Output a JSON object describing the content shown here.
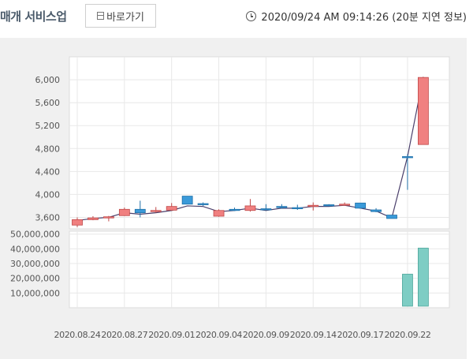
{
  "header": {
    "title": "매개 서비스업",
    "shortcut_label": "바로가기",
    "shortcut_icon": "window-icon",
    "clock_icon": "clock-icon",
    "timestamp": "2020/09/24 AM 09:14:26 (20분 지연 정보)"
  },
  "chart_data": [
    {
      "type": "candlestick",
      "title": "",
      "xlabel": "",
      "ylabel": "",
      "ylim": [
        3400,
        6400
      ],
      "yticks": [
        3600,
        4000,
        4400,
        4800,
        5200,
        5600,
        6000
      ],
      "ytick_labels": [
        "3,600",
        "4,000",
        "4,400",
        "4,800",
        "5,200",
        "5,600",
        "6,000"
      ],
      "x_tick_labels": [
        "2020.08.24",
        "2020.08.27",
        "2020.09.01",
        "2020.09.04",
        "2020.09.09",
        "2020.09.14",
        "2020.09.17",
        "2020.09.22"
      ],
      "x_tick_index": [
        0,
        3,
        6,
        9,
        12,
        15,
        18,
        21
      ],
      "up_color": "#f08080",
      "down_color": "#3a9ad9",
      "ma_color": "#4a3f6b",
      "candles": [
        {
          "o": 3465,
          "h": 3600,
          "l": 3430,
          "c": 3560
        },
        {
          "o": 3560,
          "h": 3620,
          "l": 3550,
          "c": 3590
        },
        {
          "o": 3590,
          "h": 3625,
          "l": 3530,
          "c": 3610
        },
        {
          "o": 3630,
          "h": 3770,
          "l": 3625,
          "c": 3740
        },
        {
          "o": 3740,
          "h": 3890,
          "l": 3600,
          "c": 3680
        },
        {
          "o": 3700,
          "h": 3780,
          "l": 3680,
          "c": 3720
        },
        {
          "o": 3725,
          "h": 3850,
          "l": 3715,
          "c": 3790
        },
        {
          "o": 3970,
          "h": 3970,
          "l": 3830,
          "c": 3830
        },
        {
          "o": 3840,
          "h": 3860,
          "l": 3800,
          "c": 3820
        },
        {
          "o": 3620,
          "h": 3740,
          "l": 3610,
          "c": 3720
        },
        {
          "o": 3740,
          "h": 3770,
          "l": 3710,
          "c": 3730
        },
        {
          "o": 3720,
          "h": 3920,
          "l": 3700,
          "c": 3800
        },
        {
          "o": 3750,
          "h": 3830,
          "l": 3730,
          "c": 3740
        },
        {
          "o": 3790,
          "h": 3830,
          "l": 3750,
          "c": 3770
        },
        {
          "o": 3770,
          "h": 3820,
          "l": 3730,
          "c": 3750
        },
        {
          "o": 3790,
          "h": 3860,
          "l": 3720,
          "c": 3810
        },
        {
          "o": 3820,
          "h": 3830,
          "l": 3800,
          "c": 3810
        },
        {
          "o": 3820,
          "h": 3860,
          "l": 3810,
          "c": 3830
        },
        {
          "o": 3850,
          "h": 3850,
          "l": 3760,
          "c": 3760
        },
        {
          "o": 3730,
          "h": 3760,
          "l": 3690,
          "c": 3700
        },
        {
          "o": 3640,
          "h": 3640,
          "l": 3580,
          "c": 3580
        },
        {
          "o": 4660,
          "h": 4700,
          "l": 4080,
          "c": 4650
        },
        {
          "o": 4870,
          "h": 6050,
          "l": 4870,
          "c": 6040
        }
      ],
      "ma": [
        3545,
        3580,
        3600,
        3680,
        3655,
        3680,
        3720,
        3800,
        3790,
        3700,
        3720,
        3760,
        3720,
        3760,
        3760,
        3790,
        3790,
        3810,
        3760,
        3710,
        3590,
        4660,
        6050
      ]
    },
    {
      "type": "bar",
      "title": "",
      "xlabel": "",
      "ylabel": "",
      "ylim": [
        0,
        52000000
      ],
      "yticks": [
        10000000,
        20000000,
        30000000,
        40000000,
        50000000
      ],
      "ytick_labels": [
        "10,000,000",
        "20,000,000",
        "30,000,000",
        "40,000,000",
        "50,000,000"
      ],
      "color": "#7ecdc4",
      "volume": [
        0,
        0,
        0,
        0,
        0,
        0,
        0,
        0,
        0,
        0,
        0,
        0,
        0,
        0,
        0,
        0,
        0,
        0,
        0,
        0,
        0,
        22800000,
        40500000
      ]
    }
  ]
}
